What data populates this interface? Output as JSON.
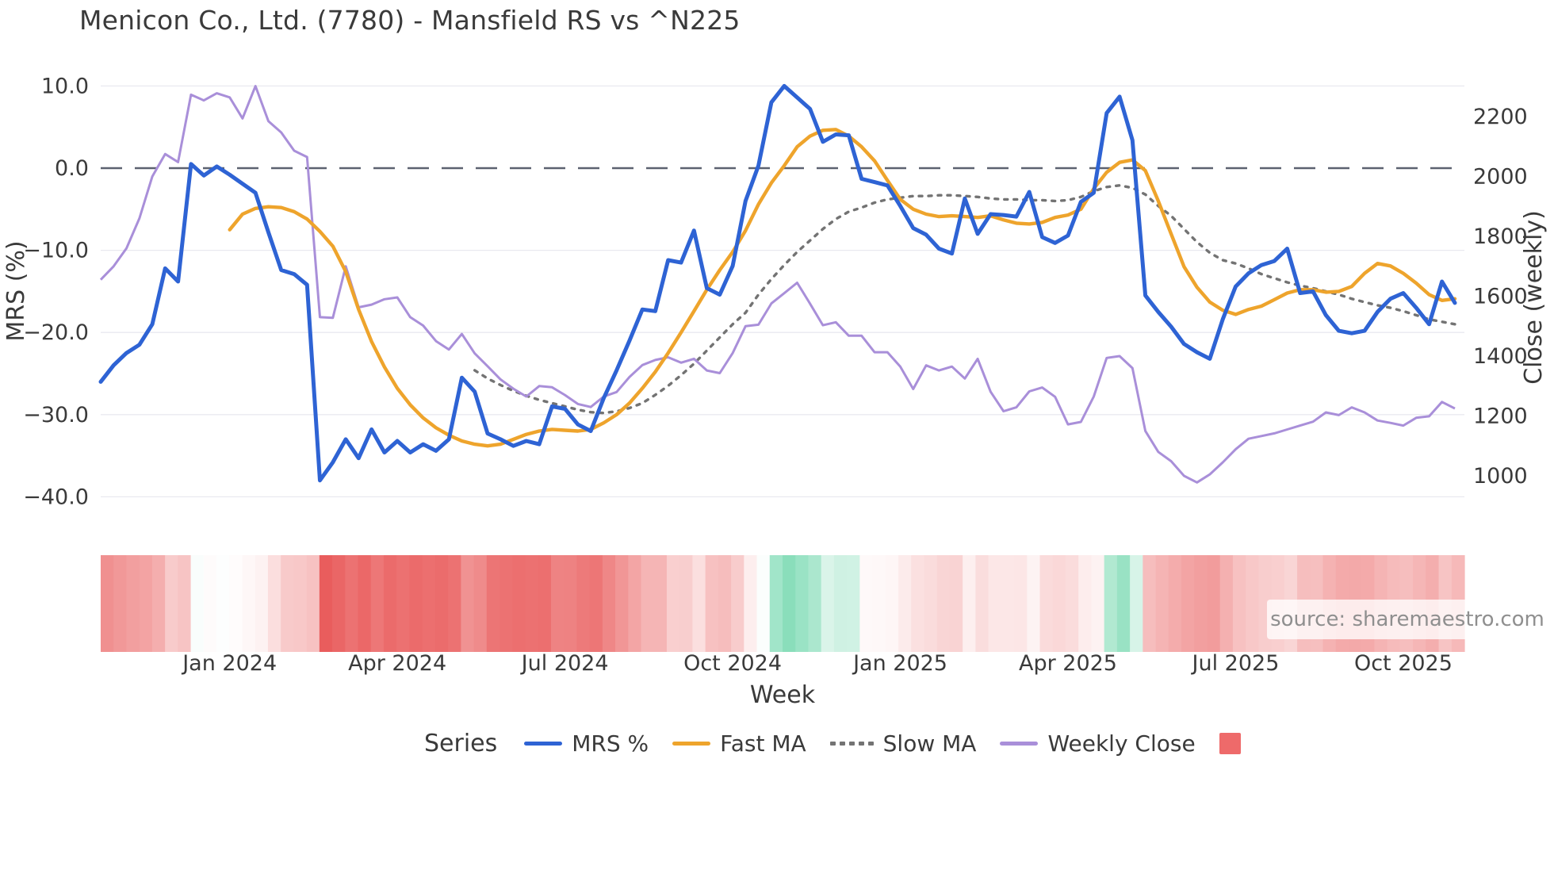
{
  "title": "Menicon Co., Ltd. (7780) - Mansfield RS vs ^N225",
  "source_note": "source: sharemaestro.com",
  "axes": {
    "left": {
      "label": "MRS (%)",
      "ticks": [
        "10.0",
        "0.0",
        "−10.0",
        "−20.0",
        "−30.0",
        "−40.0"
      ],
      "tick_values": [
        10,
        0,
        -10,
        -20,
        -30,
        -40
      ]
    },
    "right": {
      "label": "Close (weekly)",
      "ticks": [
        "2200",
        "2000",
        "1800",
        "1600",
        "1400",
        "1200",
        "1000"
      ],
      "tick_values": [
        2200,
        2000,
        1800,
        1600,
        1400,
        1200,
        1000
      ]
    },
    "x": {
      "label": "Week",
      "tick_labels": [
        "Jan 2024",
        "Apr 2024",
        "Jul 2024",
        "Oct 2024",
        "Jan 2025",
        "Apr 2025",
        "Jul 2025",
        "Oct 2025"
      ],
      "tick_weeks": [
        10,
        23,
        36,
        49,
        62,
        75,
        88,
        101
      ]
    }
  },
  "legend": {
    "title": "Series",
    "items": [
      {
        "label": "MRS %",
        "style": "solid",
        "color": "#2e63d4"
      },
      {
        "label": "Fast MA",
        "style": "solid",
        "color": "#eea42c"
      },
      {
        "label": "Slow MA",
        "style": "dotted",
        "color": "#737373"
      },
      {
        "label": "Weekly Close",
        "style": "solid",
        "color": "#a98fd9"
      }
    ],
    "heatmap_swatch_color": "#ee6a6a"
  },
  "colors": {
    "mrs": "#2e63d4",
    "fast_ma": "#eea42c",
    "slow_ma": "#737373",
    "close": "#a98fd9",
    "zero_line": "#5c6270",
    "gridline": "#e9e9f0",
    "text": "#3a3a3a",
    "heat_red": "#e85454",
    "heat_green": "#8adebb"
  },
  "chart_data": {
    "type": "line",
    "x_unit": "week",
    "start_week": "2023-10-23",
    "n_weeks": 106,
    "ylabel_left": "MRS (%)",
    "ylabel_right": "Close (weekly)",
    "ylim_left": [
      -42,
      12
    ],
    "ylim_right": [
      980,
      2320
    ],
    "grid": true,
    "zero_reference_line": 0,
    "legend_position": "bottom",
    "series": [
      {
        "name": "MRS %",
        "axis": "left",
        "values": [
          -26.0,
          -24.0,
          -22.5,
          -21.5,
          -19.0,
          -12.2,
          -13.8,
          0.5,
          -0.9,
          0.2,
          -0.8,
          -1.9,
          -3.0,
          -7.8,
          -12.4,
          -12.9,
          -14.2,
          -38.0,
          -35.8,
          -33.0,
          -35.3,
          -31.8,
          -34.6,
          -33.2,
          -34.6,
          -33.6,
          -34.4,
          -33.0,
          -25.5,
          -27.2,
          -32.3,
          -33.0,
          -33.8,
          -33.2,
          -33.6,
          -29.0,
          -29.3,
          -31.2,
          -32.0,
          -28.0,
          -24.6,
          -21.0,
          -17.2,
          -17.4,
          -11.2,
          -11.5,
          -7.6,
          -14.6,
          -15.4,
          -11.9,
          -4.0,
          0.3,
          8.0,
          10.0,
          8.6,
          7.2,
          3.2,
          4.1,
          4.0,
          -1.3,
          -1.7,
          -2.1,
          -4.6,
          -7.3,
          -8.1,
          -9.8,
          -10.4,
          -3.7,
          -8.0,
          -5.6,
          -5.7,
          -5.9,
          -2.9,
          -8.4,
          -9.1,
          -8.2,
          -4.1,
          -3.0,
          6.7,
          8.7,
          3.4,
          -15.5,
          -17.5,
          -19.3,
          -21.4,
          -22.4,
          -23.2,
          -18.4,
          -14.4,
          -12.8,
          -11.8,
          -11.3,
          -9.8,
          -15.2,
          -15.0,
          -17.9,
          -19.8,
          -20.1,
          -19.8,
          -17.5,
          -15.9,
          -15.2,
          -17.0,
          -19.0,
          -13.8,
          -16.4
        ]
      },
      {
        "name": "Fast MA",
        "axis": "left",
        "values": [
          null,
          null,
          null,
          null,
          null,
          null,
          null,
          null,
          null,
          null,
          -7.5,
          -5.6,
          -4.9,
          -4.7,
          -4.8,
          -5.3,
          -6.2,
          -7.7,
          -9.5,
          -12.6,
          -17.2,
          -21.1,
          -24.2,
          -26.8,
          -28.8,
          -30.4,
          -31.6,
          -32.5,
          -33.2,
          -33.6,
          -33.8,
          -33.6,
          -33.0,
          -32.4,
          -32.0,
          -31.8,
          -31.9,
          -32.0,
          -31.8,
          -31.0,
          -30.0,
          -28.6,
          -26.8,
          -24.8,
          -22.5,
          -20.0,
          -17.4,
          -14.8,
          -12.4,
          -10.2,
          -7.6,
          -4.4,
          -1.8,
          0.3,
          2.6,
          3.9,
          4.6,
          4.7,
          3.9,
          2.6,
          0.9,
          -1.5,
          -3.8,
          -5.0,
          -5.6,
          -5.9,
          -5.8,
          -5.9,
          -6.0,
          -5.8,
          -6.3,
          -6.7,
          -6.8,
          -6.6,
          -6.0,
          -5.7,
          -5.0,
          -2.5,
          -0.5,
          0.7,
          1.0,
          -0.3,
          -4.0,
          -8.0,
          -12.0,
          -14.5,
          -16.3,
          -17.3,
          -17.8,
          -17.2,
          -16.8,
          -16.0,
          -15.2,
          -14.8,
          -14.8,
          -15.1,
          -15.0,
          -14.4,
          -12.8,
          -11.6,
          -11.9,
          -12.8,
          -14.0,
          -15.4,
          -16.1,
          -15.9
        ]
      },
      {
        "name": "Slow MA",
        "axis": "left",
        "values": [
          null,
          null,
          null,
          null,
          null,
          null,
          null,
          null,
          null,
          null,
          null,
          null,
          null,
          null,
          null,
          null,
          null,
          null,
          null,
          null,
          null,
          null,
          null,
          null,
          null,
          null,
          null,
          null,
          null,
          -24.6,
          -25.6,
          -26.4,
          -27.1,
          -27.7,
          -28.2,
          -28.6,
          -29.0,
          -29.4,
          -29.7,
          -29.8,
          -29.6,
          -29.2,
          -28.6,
          -27.6,
          -26.5,
          -25.2,
          -23.8,
          -22.2,
          -20.6,
          -19.0,
          -17.6,
          -15.4,
          -13.5,
          -11.8,
          -10.2,
          -8.8,
          -7.4,
          -6.2,
          -5.3,
          -4.8,
          -4.2,
          -3.8,
          -3.6,
          -3.4,
          -3.4,
          -3.3,
          -3.3,
          -3.4,
          -3.5,
          -3.7,
          -3.8,
          -3.8,
          -3.9,
          -3.9,
          -4.0,
          -3.9,
          -3.5,
          -2.8,
          -2.3,
          -2.1,
          -2.4,
          -3.2,
          -4.6,
          -5.8,
          -7.4,
          -9.0,
          -10.3,
          -11.2,
          -11.6,
          -12.2,
          -12.9,
          -13.4,
          -13.9,
          -14.3,
          -14.6,
          -15.0,
          -15.4,
          -15.9,
          -16.3,
          -16.7,
          -17.0,
          -17.4,
          -17.9,
          -18.4,
          -18.7,
          -19.0
        ]
      },
      {
        "name": "Weekly Close",
        "axis": "right",
        "values": [
          1655,
          1700,
          1760,
          1860,
          2000,
          2075,
          2048,
          2273,
          2254,
          2278,
          2264,
          2194,
          2302,
          2185,
          2147,
          2086,
          2065,
          1530,
          1528,
          1700,
          1563,
          1572,
          1590,
          1596,
          1530,
          1502,
          1450,
          1422,
          1474,
          1409,
          1366,
          1322,
          1291,
          1265,
          1300,
          1296,
          1270,
          1240,
          1230,
          1265,
          1280,
          1330,
          1370,
          1387,
          1396,
          1378,
          1391,
          1352,
          1343,
          1410,
          1500,
          1505,
          1576,
          1610,
          1645,
          1575,
          1503,
          1513,
          1468,
          1468,
          1413,
          1413,
          1365,
          1290,
          1369,
          1352,
          1365,
          1325,
          1391,
          1281,
          1216,
          1229,
          1282,
          1295,
          1264,
          1172,
          1180,
          1265,
          1394,
          1400,
          1360,
          1150,
          1080,
          1049,
          1000,
          978,
          1005,
          1045,
          1089,
          1124,
          1133,
          1142,
          1155,
          1168,
          1181,
          1212,
          1203,
          1229,
          1212,
          1185,
          1177,
          1168,
          1194,
          1199,
          1247,
          1225
        ]
      }
    ],
    "heatmap": {
      "desc": "weekly strip colored by MRS value: red = negative, green = positive",
      "source_series": "MRS %",
      "red_at": -40,
      "green_at": 10
    }
  }
}
